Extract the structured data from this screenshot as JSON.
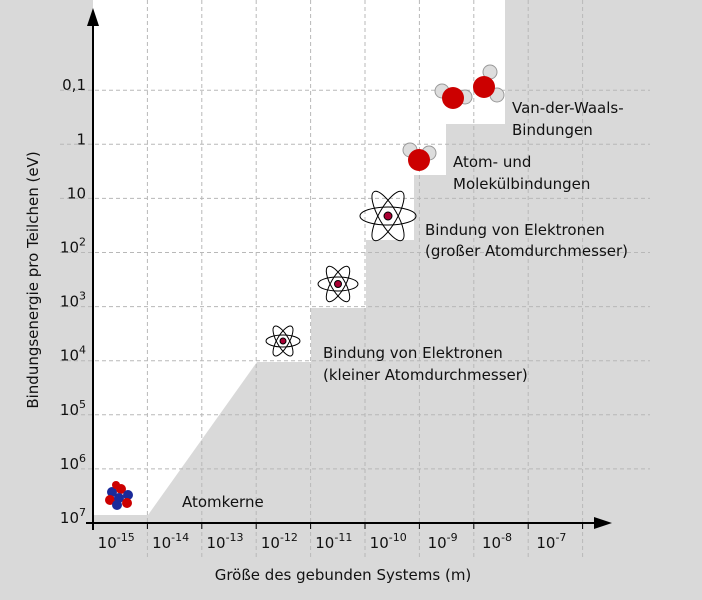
{
  "axes": {
    "y_label": "Bindungsenergie pro Teilchen (eV)",
    "x_label": "Größe des gebunden Systems (m)",
    "y_ticks": [
      {
        "base": "10",
        "exp": "7"
      },
      {
        "base": "10",
        "exp": "6"
      },
      {
        "base": "10",
        "exp": "5"
      },
      {
        "base": "10",
        "exp": "4"
      },
      {
        "base": "10",
        "exp": "3"
      },
      {
        "base": "10",
        "exp": "2"
      },
      {
        "text": "10"
      },
      {
        "text": "1"
      },
      {
        "text": "0,1"
      }
    ],
    "x_ticks": [
      {
        "base": "10",
        "exp": "-15"
      },
      {
        "base": "10",
        "exp": "-14"
      },
      {
        "base": "10",
        "exp": "-13"
      },
      {
        "base": "10",
        "exp": "-12"
      },
      {
        "base": "10",
        "exp": "-11"
      },
      {
        "base": "10",
        "exp": "-10"
      },
      {
        "base": "10",
        "exp": "-9"
      },
      {
        "base": "10",
        "exp": "-8"
      },
      {
        "base": "10",
        "exp": "-7"
      }
    ]
  },
  "regions": [
    {
      "lines": [
        "Atomkerne"
      ]
    },
    {
      "lines": [
        "Bindung von Elektronen",
        "(kleiner Atomdurchmesser)"
      ]
    },
    {
      "lines": [
        "Bindung von Elektronen",
        "(großer Atomdurchmesser)"
      ]
    },
    {
      "lines": [
        "Atom- und",
        "Molekülbindungen"
      ]
    },
    {
      "lines": [
        "Van-der-Waals-",
        "Bindungen"
      ]
    }
  ]
}
